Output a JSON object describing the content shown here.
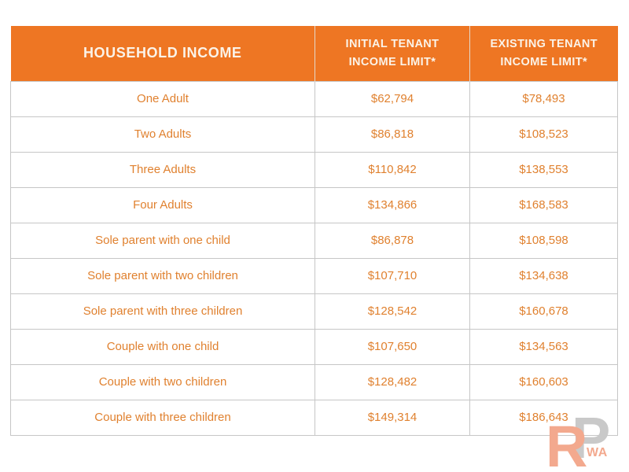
{
  "chart_data": {
    "type": "table",
    "columns": [
      "HOUSEHOLD INCOME",
      "INITIAL TENANT\nINCOME LIMIT*",
      "EXISTING TENANT\nINCOME LIMIT*"
    ],
    "rows": [
      [
        "One Adult",
        "$62,794",
        "$78,493"
      ],
      [
        "Two Adults",
        "$86,818",
        "$108,523"
      ],
      [
        "Three Adults",
        "$110,842",
        "$138,553"
      ],
      [
        "Four Adults",
        "$134,866",
        "$168,583"
      ],
      [
        "Sole parent with one child",
        "$86,878",
        "$108,598"
      ],
      [
        "Sole parent with two children",
        "$107,710",
        "$134,638"
      ],
      [
        "Sole parent with three children",
        "$128,542",
        "$160,678"
      ],
      [
        "Couple with one child",
        "$107,650",
        "$134,563"
      ],
      [
        "Couple with two children",
        "$128,482",
        "$160,603"
      ],
      [
        "Couple with three children",
        "$149,314",
        "$186,643"
      ]
    ],
    "title": "",
    "legend": "none",
    "grid": "on"
  },
  "watermark": {
    "letter_r": "R",
    "letter_p": "P",
    "suffix": "WA"
  },
  "colors": {
    "header_background": "#EE7623",
    "header_text": "#FBF3E8",
    "body_text": "#E0812F",
    "border": "#C6C6C6",
    "watermark_r": "#F3A98E",
    "watermark_p": "#C9C9C9",
    "page_background": "#FFFFFF"
  }
}
